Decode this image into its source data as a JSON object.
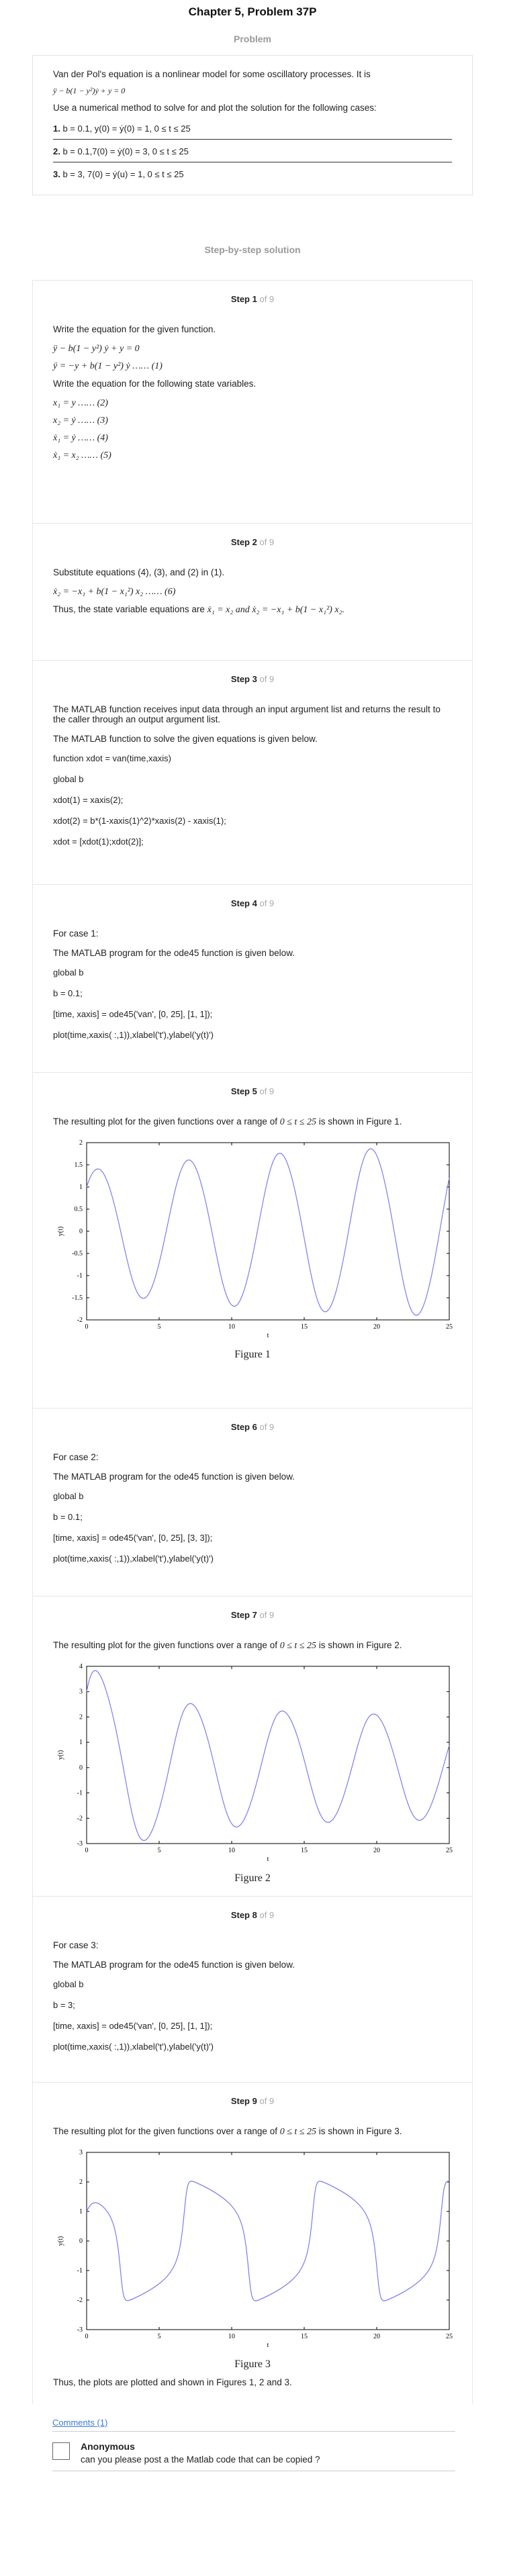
{
  "header": {
    "title": "Chapter 5, Problem 37P",
    "problem_label": "Problem",
    "solution_label": "Step-by-step solution"
  },
  "problem": {
    "intro": "Van der Pol's equation is a nonlinear model for some oscillatory processes. It is",
    "equation": "ÿ − b(1 − y²)ẏ + y = 0",
    "instruction": "Use a numerical method to solve for and plot the solution for the following cases:",
    "cases": [
      {
        "num": "1.",
        "text": "b = 0.1, y(0) = ẏ(0) = 1, 0 ≤ t ≤ 25"
      },
      {
        "num": "2.",
        "text": "b = 0.1,7(0) = ẏ(0) = 3, 0 ≤ t ≤ 25"
      },
      {
        "num": "3.",
        "text": "b = 3, 7(0) = ẏ(u) = 1, 0 ≤ t ≤ 25"
      }
    ]
  },
  "step_of": "of 9",
  "steps": [
    {
      "label": "Step 1",
      "line1": "Write the equation for the given function.",
      "eq1": "ÿ − b(1 − y²) ẏ + y = 0",
      "eq2": "ÿ = −y + b(1 − y²) ẏ …… (1)",
      "line2": "Write the equation for the following state variables.",
      "sv": [
        "x₁ = y …… (2)",
        "x₂ = ẏ …… (3)",
        "ẋ₁ = ẏ …… (4)",
        "ẋ₁ = x₂ …… (5)"
      ]
    },
    {
      "label": "Step 2",
      "line1": "Substitute equations (4), (3), and (2) in (1).",
      "eq1": "ẋ₂ = −x₁ + b(1 − x₁²) x₂ …… (6)",
      "line2": "Thus, the state variable equations are",
      "eq2": "ẋ₁ = x₂ and ẋ₂ = −x₁ + b(1 − x₁²) x₂."
    },
    {
      "label": "Step 3",
      "line1": "The MATLAB function receives input data through an input argument list and returns the result to the caller through an output argument list.",
      "line2": "The MATLAB function to solve the given equations is given below.",
      "code": [
        "function xdot = van(time,xaxis)",
        "global b",
        "xdot(1) = xaxis(2);",
        "xdot(2) = b*(1-xaxis(1)^2)*xaxis(2) - xaxis(1);",
        "xdot = [xdot(1);xdot(2)];"
      ]
    },
    {
      "label": "Step 4",
      "line1": "For case 1:",
      "line2": "The MATLAB program for the ode45 function is given below.",
      "code": [
        "global b",
        "b = 0.1;",
        "[time, xaxis] = ode45('van', [0, 25], [1, 1]);",
        "plot(time,xaxis( :,1)),xlabel('t'),ylabel('y(t)')"
      ]
    },
    {
      "label": "Step 5",
      "line1a": "The resulting plot for the given functions over a range of",
      "range": "0 ≤ t ≤ 25",
      "line1b": "is shown in Figure 1.",
      "caption": "Figure 1"
    },
    {
      "label": "Step 6",
      "line1": "For case 2:",
      "line2": "The MATLAB program for the ode45 function is given below.",
      "code": [
        "global b",
        "b = 0.1;",
        "[time, xaxis] = ode45('van', [0, 25], [3, 3]);",
        "plot(time,xaxis( :,1)),xlabel('t'),ylabel('y(t)')"
      ]
    },
    {
      "label": "Step 7",
      "line1a": "The resulting plot for the given functions over a range of",
      "range": "0 ≤ t ≤ 25",
      "line1b": "is shown in Figure 2.",
      "caption": "Figure 2"
    },
    {
      "label": "Step 8",
      "line1": "For case 3:",
      "line2": "The MATLAB program for the ode45 function is given below.",
      "code": [
        "global b",
        "b = 3;",
        "[time, xaxis] = ode45('van', [0, 25], [1, 1]);",
        "plot(time,xaxis( :,1)),xlabel('t'),ylabel('y(t)')"
      ]
    },
    {
      "label": "Step 9",
      "line1a": "The resulting plot for the given functions over a range of",
      "range": "0 ≤ t ≤ 25",
      "line1b": "is shown in Figure 3.",
      "caption": "Figure 3",
      "conclusion": "Thus, the plots are plotted and shown in Figures 1, 2 and 3."
    }
  ],
  "chart_data": [
    {
      "type": "line",
      "b": 0.1,
      "y0": [
        1,
        1
      ],
      "xlim": [
        0,
        25
      ],
      "ylim": [
        -2,
        2
      ],
      "xticks": [
        "0",
        "5",
        "10",
        "15",
        "20",
        "25"
      ],
      "yticks": [
        "2",
        "1.5",
        "1",
        "0.5",
        "0",
        "-0.5",
        "-1",
        "-1.5",
        "-2"
      ],
      "xlabel": "t",
      "ylabel": "y(t)",
      "color": "#7b7bf0"
    },
    {
      "type": "line",
      "b": 0.1,
      "y0": [
        3,
        3
      ],
      "xlim": [
        0,
        25
      ],
      "ylim": [
        -3,
        4
      ],
      "xticks": [
        "0",
        "5",
        "10",
        "15",
        "20",
        "25"
      ],
      "yticks": [
        "4",
        "3",
        "2",
        "1",
        "0",
        "-1",
        "-2",
        "-3"
      ],
      "xlabel": "t",
      "ylabel": "y(t)",
      "color": "#7b7bf0"
    },
    {
      "type": "line",
      "b": 3,
      "y0": [
        1,
        1
      ],
      "xlim": [
        0,
        25
      ],
      "ylim": [
        -3,
        3
      ],
      "xticks": [
        "0",
        "5",
        "10",
        "15",
        "20",
        "25"
      ],
      "yticks": [
        "3",
        "2",
        "1",
        "0",
        "-1",
        "-2",
        "-3"
      ],
      "xlabel": "t",
      "ylabel": "y(t)",
      "color": "#7b7bf0"
    }
  ],
  "comments": {
    "link": "Comments (1)",
    "author": "Anonymous",
    "text": "can you please post a the Matlab code that can be copied ?"
  }
}
